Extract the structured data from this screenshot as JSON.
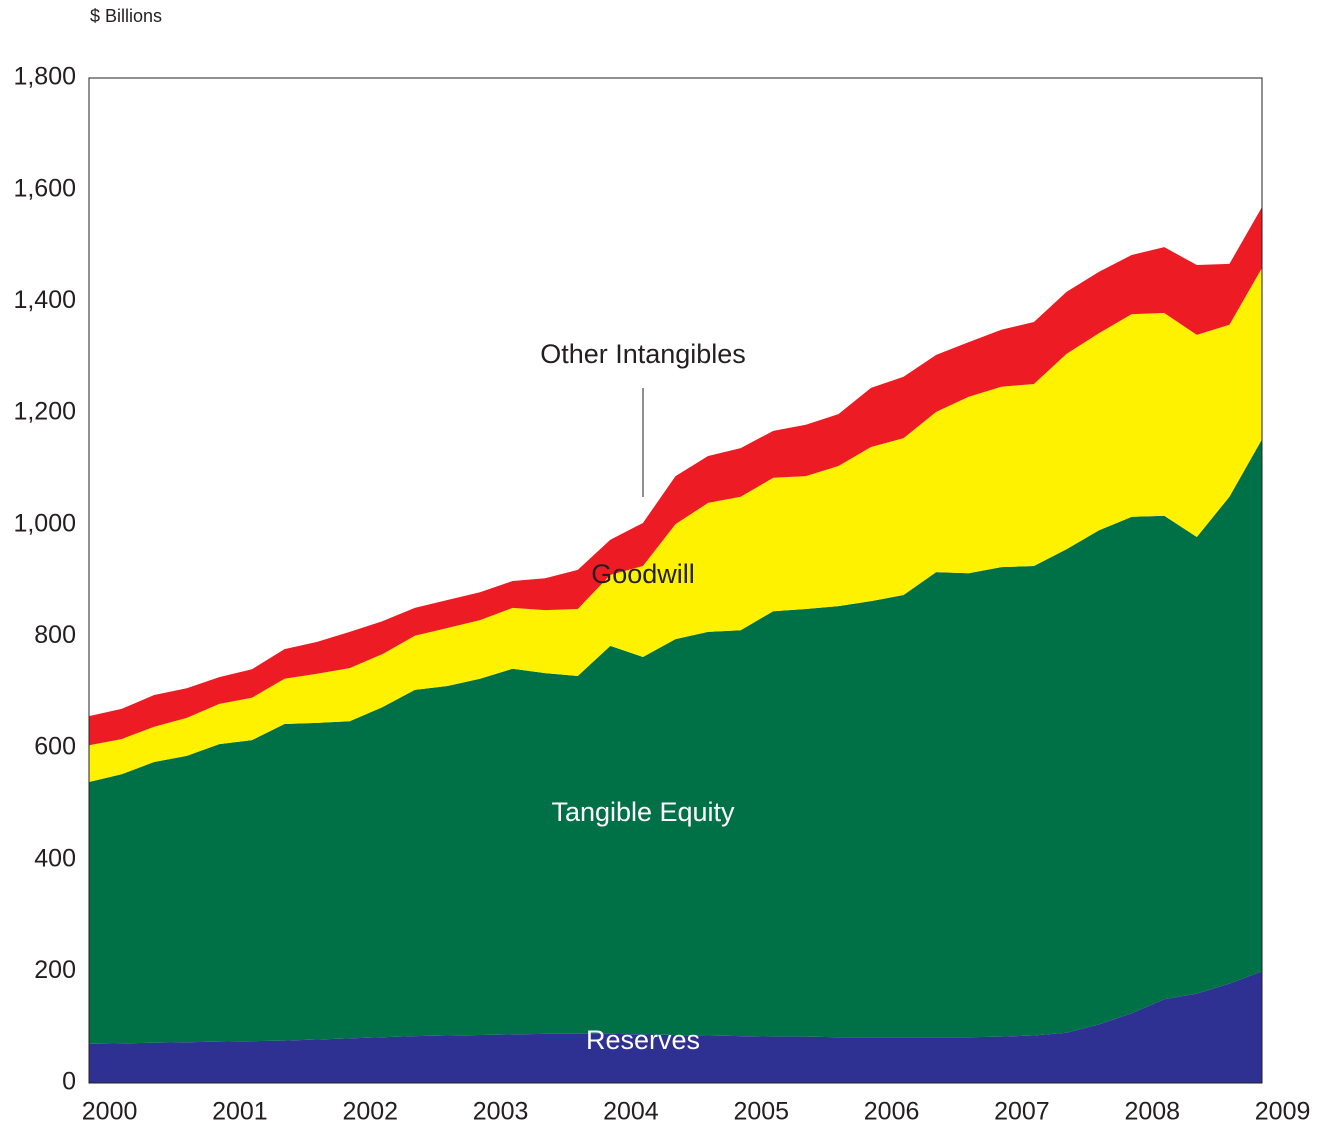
{
  "chart_data": {
    "type": "stacked_area",
    "y_label": "$ Billions",
    "x": [
      1999.75,
      2000,
      2000.25,
      2000.5,
      2000.75,
      2001,
      2001.25,
      2001.5,
      2001.75,
      2002,
      2002.25,
      2002.5,
      2002.75,
      2003,
      2003.25,
      2003.5,
      2003.75,
      2004,
      2004.25,
      2004.5,
      2004.75,
      2005,
      2005.25,
      2005.5,
      2005.75,
      2006,
      2006.25,
      2006.5,
      2006.75,
      2007,
      2007.25,
      2007.5,
      2007.75,
      2008,
      2008.25,
      2008.5,
      2008.75
    ],
    "series": [
      {
        "name": "Reserves",
        "color": "#2e3192",
        "values": [
          70,
          71,
          72,
          73,
          74,
          75,
          76,
          78,
          80,
          82,
          84,
          85,
          86,
          87,
          88,
          88,
          88,
          87,
          86,
          85,
          84,
          83,
          83,
          82,
          82,
          82,
          82,
          82,
          83,
          85,
          90,
          105,
          125,
          150,
          160,
          178,
          200
        ]
      },
      {
        "name": "Tangible Equity",
        "color": "#007046",
        "values": [
          469,
          482,
          503,
          513,
          533,
          539,
          567,
          567,
          568,
          591,
          620,
          626,
          638,
          655,
          646,
          641,
          695,
          676,
          709,
          723,
          727,
          762,
          766,
          772,
          781,
          792,
          833,
          831,
          841,
          841,
          866,
          885,
          889,
          866,
          818,
          872,
          953
        ]
      },
      {
        "name": "Goodwill",
        "color": "#fff200",
        "values": [
          66,
          63,
          63,
          68,
          72,
          76,
          81,
          88,
          95,
          95,
          97,
          104,
          105,
          109,
          113,
          120,
          127,
          163,
          206,
          231,
          239,
          239,
          238,
          251,
          276,
          281,
          287,
          316,
          323,
          326,
          350,
          353,
          363,
          363,
          362,
          308,
          307
        ]
      },
      {
        "name": "Other Intangibles",
        "color": "#ed1c24",
        "values": [
          52,
          54,
          57,
          53,
          48,
          51,
          53,
          57,
          65,
          59,
          50,
          50,
          50,
          48,
          57,
          70,
          63,
          77,
          86,
          84,
          87,
          84,
          92,
          93,
          106,
          110,
          102,
          98,
          102,
          111,
          111,
          110,
          106,
          118,
          125,
          109,
          109
        ]
      }
    ],
    "xlim": [
      1999.75,
      2008.75
    ],
    "xticks": [
      2000,
      2001,
      2002,
      2003,
      2004,
      2005,
      2006,
      2007,
      2008,
      2009
    ],
    "ylim": [
      0,
      1800
    ],
    "yticks": [
      0,
      200,
      400,
      600,
      800,
      {
        "value": 1000,
        "label": "1,000"
      },
      {
        "value": 1200,
        "label": "1,200"
      },
      {
        "value": 1400,
        "label": "1,400"
      },
      {
        "value": 1600,
        "label": "1,600"
      },
      {
        "value": 1800,
        "label": "1,800"
      }
    ]
  }
}
